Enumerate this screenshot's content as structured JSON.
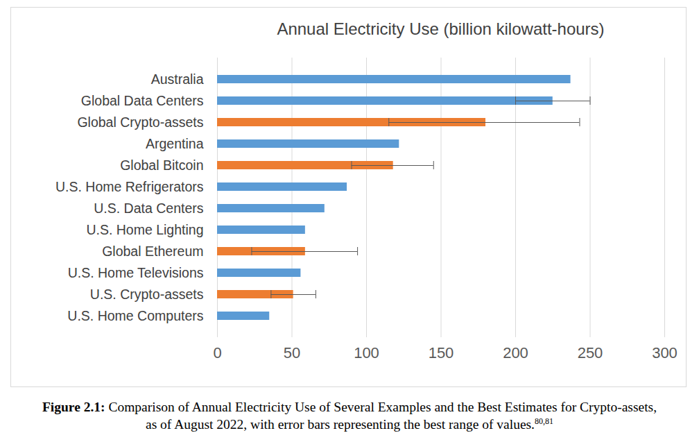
{
  "chart_data": {
    "type": "bar",
    "title": "Annual Electricity Use (billion kilowatt-hours)",
    "caption": {
      "label": "Figure 2.1:",
      "text": "Comparison of Annual Electricity Use of Several Examples and the Best Estimates for Crypto-assets, as of August 2022, with error bars representing the best range of values.",
      "refs": "80,81"
    },
    "orientation": "horizontal",
    "categories": [
      "Australia",
      "Global Data Centers",
      "Global Crypto-assets",
      "Argentina",
      "Global Bitcoin",
      "U.S. Home Refrigerators",
      "U.S. Data Centers",
      "U.S. Home Lighting",
      "Global Ethereum",
      "U.S. Home Televisions",
      "U.S. Crypto-assets",
      "U.S. Home Computers"
    ],
    "values": [
      237,
      225,
      180,
      122,
      118,
      87,
      72,
      59,
      59,
      56,
      51,
      35
    ],
    "colors": [
      "#5b9bd5",
      "#5b9bd5",
      "#ed7d31",
      "#5b9bd5",
      "#ed7d31",
      "#5b9bd5",
      "#5b9bd5",
      "#5b9bd5",
      "#ed7d31",
      "#5b9bd5",
      "#ed7d31",
      "#5b9bd5"
    ],
    "error_low": [
      null,
      200,
      115,
      null,
      90,
      null,
      null,
      null,
      23,
      null,
      36,
      null
    ],
    "error_high": [
      null,
      250,
      243,
      null,
      145,
      null,
      null,
      null,
      94,
      null,
      66,
      null
    ],
    "xlim": [
      0,
      300
    ],
    "xticks": [
      0,
      50,
      100,
      150,
      200,
      250,
      300
    ],
    "grid": true
  }
}
